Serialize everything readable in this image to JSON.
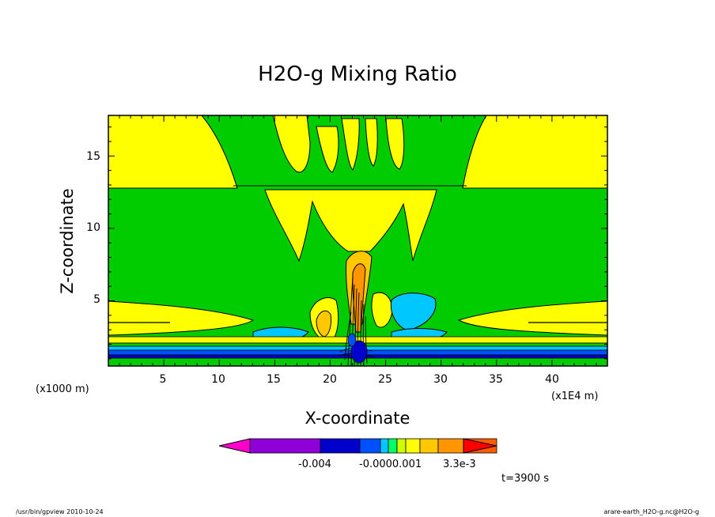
{
  "chart_data": {
    "type": "heatmap",
    "title": "H2O-g Mixing Ratio",
    "xlabel": "X-coordinate",
    "ylabel": "Z-coordinate",
    "x_unit": "(x1E4 m)",
    "y_unit": "(x1000 m)",
    "xlim": [
      0,
      45
    ],
    "ylim": [
      0.5,
      17.8
    ],
    "x_ticks": [
      "5",
      "10",
      "15",
      "20",
      "25",
      "30",
      "35",
      "40"
    ],
    "y_ticks": [
      "5",
      "10",
      "15"
    ],
    "colorbar": {
      "colors": [
        "#ff00cc",
        "#8f00d9",
        "#0000cc",
        "#0050ff",
        "#00c8ff",
        "#00ff66",
        "#ccff00",
        "#ffff00",
        "#ffc800",
        "#ff9600",
        "#ff5a00",
        "#ff0000"
      ],
      "labels": [
        "-0.004",
        "-0.0000.001",
        "3.3e-3"
      ]
    },
    "time_label": "t=3900 s"
  },
  "footer": {
    "left": "/usr/bin/gpview   2010-10-24",
    "right": "arare-earth_H2O-g.nc@H2O-g"
  }
}
